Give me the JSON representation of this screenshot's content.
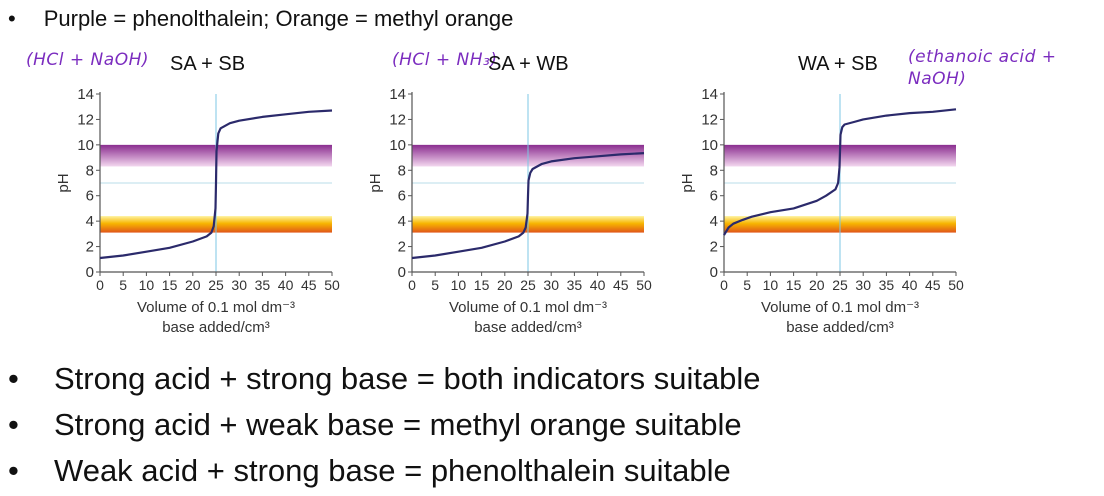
{
  "header": {
    "bullet": "•",
    "text": "Purple = phenolthalein; Orange = methyl orange"
  },
  "colors": {
    "curve": "#2b2a6b",
    "purple_band_top": "#8a2d8f",
    "purple_band_bottom": "#f3d7ef",
    "orange_band_top": "#fff3a0",
    "orange_band_bottom": "#e0551a",
    "grid": "#b9dcea",
    "vline": "#7cc7e4",
    "annotation": "#7b2cbf"
  },
  "chart_data": [
    {
      "type": "line",
      "title": "SA + SB",
      "annotation": "(HCl + NaOH)",
      "xlabel_line1": "Volume of 0.1 mol dm⁻³",
      "xlabel_line2": "base added/cm³",
      "ylabel": "pH",
      "xlim": [
        0,
        50
      ],
      "ylim": [
        0,
        14
      ],
      "xticks": [
        0,
        5,
        10,
        15,
        20,
        25,
        30,
        35,
        40,
        45,
        50
      ],
      "yticks": [
        0,
        2,
        4,
        6,
        8,
        10,
        12,
        14
      ],
      "equivalence_volume": 25,
      "phenolphthalein_range": [
        8.3,
        10
      ],
      "methyl_orange_range": [
        3.1,
        4.4
      ],
      "x": [
        0,
        5,
        10,
        15,
        20,
        23,
        24,
        24.5,
        24.9,
        25,
        25.1,
        25.5,
        26,
        28,
        30,
        35,
        40,
        45,
        50
      ],
      "y": [
        1.1,
        1.3,
        1.6,
        1.9,
        2.4,
        2.8,
        3.1,
        3.6,
        5.0,
        7.0,
        9.5,
        10.9,
        11.3,
        11.7,
        11.9,
        12.2,
        12.4,
        12.6,
        12.7
      ]
    },
    {
      "type": "line",
      "title": "SA + WB",
      "annotation": "(HCl + NH₃)",
      "xlabel_line1": "Volume of 0.1 mol dm⁻³",
      "xlabel_line2": "base added/cm³",
      "ylabel": "pH",
      "xlim": [
        0,
        50
      ],
      "ylim": [
        0,
        14
      ],
      "xticks": [
        0,
        5,
        10,
        15,
        20,
        25,
        30,
        35,
        40,
        45,
        50
      ],
      "yticks": [
        0,
        2,
        4,
        6,
        8,
        10,
        12,
        14
      ],
      "equivalence_volume": 25,
      "phenolphthalein_range": [
        8.3,
        10
      ],
      "methyl_orange_range": [
        3.1,
        4.4
      ],
      "x": [
        0,
        5,
        10,
        15,
        20,
        23,
        24,
        24.5,
        24.9,
        25,
        25.1,
        25.5,
        26,
        28,
        30,
        35,
        40,
        45,
        50
      ],
      "y": [
        1.1,
        1.3,
        1.6,
        1.9,
        2.4,
        2.8,
        3.1,
        3.5,
        4.6,
        6.0,
        7.2,
        7.8,
        8.1,
        8.5,
        8.7,
        8.95,
        9.1,
        9.25,
        9.35
      ]
    },
    {
      "type": "line",
      "title": "WA + SB",
      "annotation": "(ethanoic acid + NaOH)",
      "xlabel_line1": "Volume of 0.1 mol dm⁻³",
      "xlabel_line2": "base added/cm³",
      "ylabel": "pH",
      "xlim": [
        0,
        50
      ],
      "ylim": [
        0,
        14
      ],
      "xticks": [
        0,
        5,
        10,
        15,
        20,
        25,
        30,
        35,
        40,
        45,
        50
      ],
      "yticks": [
        0,
        2,
        4,
        6,
        8,
        10,
        12,
        14
      ],
      "equivalence_volume": 25,
      "phenolphthalein_range": [
        8.3,
        10
      ],
      "methyl_orange_range": [
        3.1,
        4.4
      ],
      "x": [
        0,
        1,
        2,
        4,
        6,
        10,
        15,
        20,
        22,
        24,
        24.6,
        24.9,
        25,
        25.1,
        25.5,
        26,
        28,
        30,
        35,
        40,
        45,
        50
      ],
      "y": [
        2.9,
        3.5,
        3.8,
        4.1,
        4.35,
        4.7,
        5.0,
        5.6,
        6.0,
        6.5,
        7.0,
        8.2,
        9.5,
        10.8,
        11.4,
        11.6,
        11.8,
        12.0,
        12.3,
        12.5,
        12.6,
        12.8
      ]
    }
  ],
  "bullets": [
    {
      "marker": "•",
      "text": "Strong acid + strong base = both indicators suitable"
    },
    {
      "marker": "•",
      "text": "Strong acid + weak base = methyl orange suitable"
    },
    {
      "marker": "•",
      "text": "Weak acid + strong base = phenolthalein suitable"
    }
  ]
}
